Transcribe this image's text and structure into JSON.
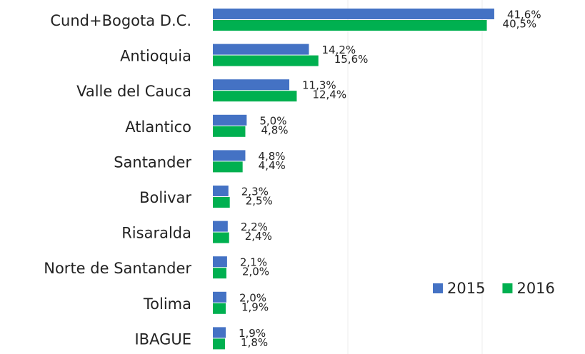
{
  "chart_data": {
    "type": "hbar",
    "categories": [
      "Cund+Bogota D.C.",
      "Antioquia",
      "Valle del Cauca",
      "Atlantico",
      "Santander",
      "Bolivar",
      "Risaralda",
      "Norte de Santander",
      "Tolima",
      "IBAGUE"
    ],
    "series": [
      {
        "name": "2015",
        "color": "#4472c4",
        "values": [
          41.6,
          14.2,
          11.3,
          5.0,
          4.8,
          2.3,
          2.2,
          2.1,
          2.0,
          1.9
        ],
        "value_labels": [
          "41,6%",
          "14,2%",
          "11,3%",
          "5,0%",
          "4,8%",
          "2,3%",
          "2,2%",
          "2,1%",
          "2,0%",
          "1,9%"
        ]
      },
      {
        "name": "2016",
        "color": "#00b050",
        "values": [
          40.5,
          15.6,
          12.4,
          4.8,
          4.4,
          2.5,
          2.4,
          2.0,
          1.9,
          1.8
        ],
        "value_labels": [
          "40,5%",
          "15,6%",
          "12,4%",
          "4,8%",
          "4,4%",
          "2,5%",
          "2,4%",
          "2,0%",
          "1,9%",
          "1,8%"
        ]
      }
    ],
    "legend": "bottom-right"
  }
}
